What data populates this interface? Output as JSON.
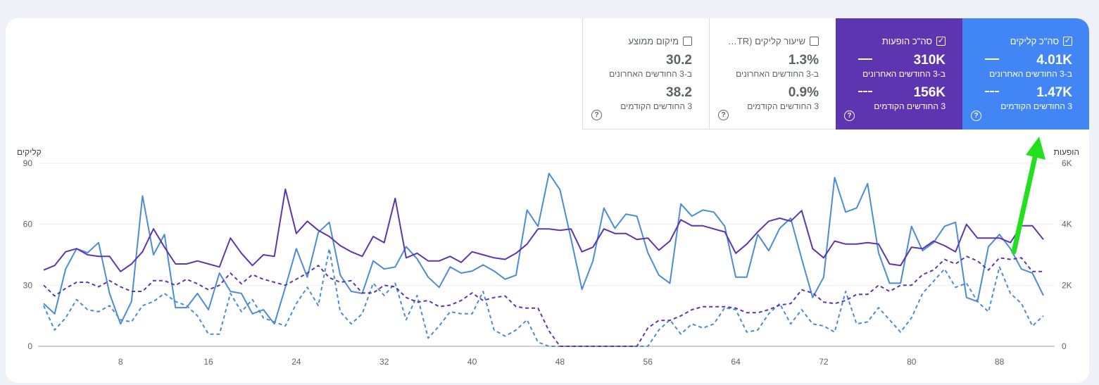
{
  "tiles": [
    {
      "label": "סה\"כ קליקים",
      "checked": true,
      "current_value": "4.01K",
      "current_label": "ב-3 החודשים האחרונים",
      "previous_value": "1.47K",
      "previous_label": "3 החודשים הקודמים",
      "color": "#4285f4"
    },
    {
      "label": "סה\"כ הופעות",
      "checked": true,
      "current_value": "310K",
      "current_label": "ב-3 החודשים האחרונים",
      "previous_value": "156K",
      "previous_label": "3 החודשים הקודמים",
      "color": "#5e35b1"
    },
    {
      "label": "שיעור קליקים (CTR)...",
      "checked": false,
      "current_value": "1.3%",
      "current_label": "ב-3 החודשים האחרונים",
      "previous_value": "0.9%",
      "previous_label": "3 החודשים הקודמים"
    },
    {
      "label": "מיקום ממוצע",
      "checked": false,
      "current_value": "30.2",
      "current_label": "ב-3 החודשים האחרונים",
      "previous_value": "38.2",
      "previous_label": "3 החודשים הקודמים"
    }
  ],
  "checkmark": "✓",
  "help_symbol": "?",
  "chart_data": {
    "type": "line",
    "left_axis_title": "קליקים",
    "right_axis_title": "הופעות",
    "left_ylim": [
      0,
      90
    ],
    "left_ticks": [
      0,
      30,
      60,
      90
    ],
    "right_ylim": [
      0,
      6000
    ],
    "right_ticks": [
      "0",
      "2K",
      "4K",
      "6K"
    ],
    "right_tick_values": [
      0,
      2000,
      4000,
      6000
    ],
    "x_ticks": [
      8,
      16,
      24,
      32,
      40,
      48,
      56,
      64,
      72,
      80,
      88
    ],
    "x_range": [
      1,
      92
    ],
    "grid": true,
    "series": [
      {
        "axis": "left",
        "style": "solid",
        "color": "#4a8cd6",
        "values": [
          21,
          16,
          38,
          48,
          46,
          51,
          26,
          11,
          22,
          74,
          45,
          55,
          19,
          19,
          26,
          18,
          36,
          27,
          26,
          16,
          18,
          11,
          29,
          48,
          34,
          56,
          61,
          35,
          27,
          26,
          42,
          38,
          39,
          49,
          43,
          34,
          29,
          39,
          36,
          37,
          40,
          37,
          33,
          35,
          67,
          59,
          85,
          77,
          53,
          28,
          42,
          68,
          58,
          65,
          64,
          46,
          35,
          31,
          70,
          64,
          67,
          66,
          59,
          34,
          34,
          55,
          47,
          58,
          63,
          43,
          24,
          34,
          83,
          66,
          68,
          80,
          46,
          31,
          31,
          59,
          47,
          51,
          59,
          61,
          24,
          22,
          49,
          55,
          48,
          38,
          36,
          25
        ]
      },
      {
        "axis": "right",
        "style": "solid",
        "color": "#5e35b1",
        "values": [
          2500,
          2650,
          3100,
          3200,
          3000,
          2950,
          2950,
          2450,
          2700,
          3100,
          3850,
          3250,
          2700,
          2700,
          2800,
          2700,
          2600,
          3550,
          3050,
          2650,
          3000,
          2950,
          5150,
          3700,
          4100,
          3800,
          3600,
          3300,
          3100,
          2950,
          3600,
          3400,
          4850,
          2900,
          3050,
          2800,
          2800,
          2950,
          2750,
          3100,
          3000,
          2900,
          2850,
          3050,
          3350,
          3850,
          3850,
          3800,
          3850,
          3100,
          3250,
          3850,
          3700,
          3700,
          3500,
          3550,
          3150,
          3450,
          4150,
          3950,
          3950,
          3850,
          3750,
          3050,
          3350,
          3750,
          4100,
          4200,
          4100,
          4450,
          3200,
          2900,
          3450,
          3350,
          3350,
          3400,
          3350,
          2700,
          2650,
          3250,
          3200,
          3450,
          3300,
          3100,
          4000,
          3550,
          3550,
          3550,
          3400,
          3950,
          3950,
          3500
        ]
      },
      {
        "axis": "left",
        "style": "dashed",
        "color": "#4a8cd6",
        "values": [
          20,
          8,
          14,
          23,
          18,
          17,
          20,
          13,
          12,
          20,
          22,
          26,
          22,
          20,
          15,
          6,
          6,
          26,
          17,
          23,
          14,
          12,
          10,
          21,
          29,
          20,
          48,
          17,
          11,
          16,
          31,
          25,
          31,
          13,
          25,
          4,
          10,
          17,
          16,
          16,
          27,
          8,
          5,
          8,
          13,
          2,
          0,
          0,
          0,
          0,
          0,
          0,
          0,
          0,
          0,
          0,
          8,
          13,
          6,
          11,
          9,
          11,
          19,
          18,
          7,
          8,
          16,
          21,
          11,
          18,
          11,
          10,
          7,
          27,
          11,
          12,
          19,
          13,
          7,
          14,
          26,
          32,
          38,
          29,
          31,
          22,
          17,
          39,
          26,
          21,
          10,
          15
        ]
      },
      {
        "axis": "right",
        "style": "dashed",
        "color": "#5e35b1",
        "values": [
          2000,
          1650,
          1900,
          2100,
          2100,
          1950,
          2150,
          1950,
          1800,
          1800,
          2150,
          2150,
          2000,
          2200,
          2050,
          1850,
          2000,
          2400,
          2050,
          2350,
          2200,
          2100,
          2000,
          2200,
          2400,
          2650,
          2250,
          2100,
          2150,
          1750,
          1750,
          2000,
          1950,
          1600,
          1450,
          1500,
          1300,
          1350,
          1500,
          1750,
          1500,
          1600,
          1650,
          1300,
          1250,
          1250,
          500,
          0,
          0,
          0,
          0,
          0,
          0,
          0,
          0,
          600,
          850,
          850,
          1000,
          1200,
          1300,
          1300,
          1300,
          1250,
          1100,
          1100,
          1200,
          1350,
          1400,
          1850,
          1750,
          1450,
          1400,
          1500,
          1700,
          1700,
          2000,
          1800,
          2000,
          2000,
          2350,
          2500,
          2850,
          2700,
          2950,
          2800,
          2500,
          2900,
          2850,
          2900,
          2450,
          2450
        ]
      }
    ]
  }
}
